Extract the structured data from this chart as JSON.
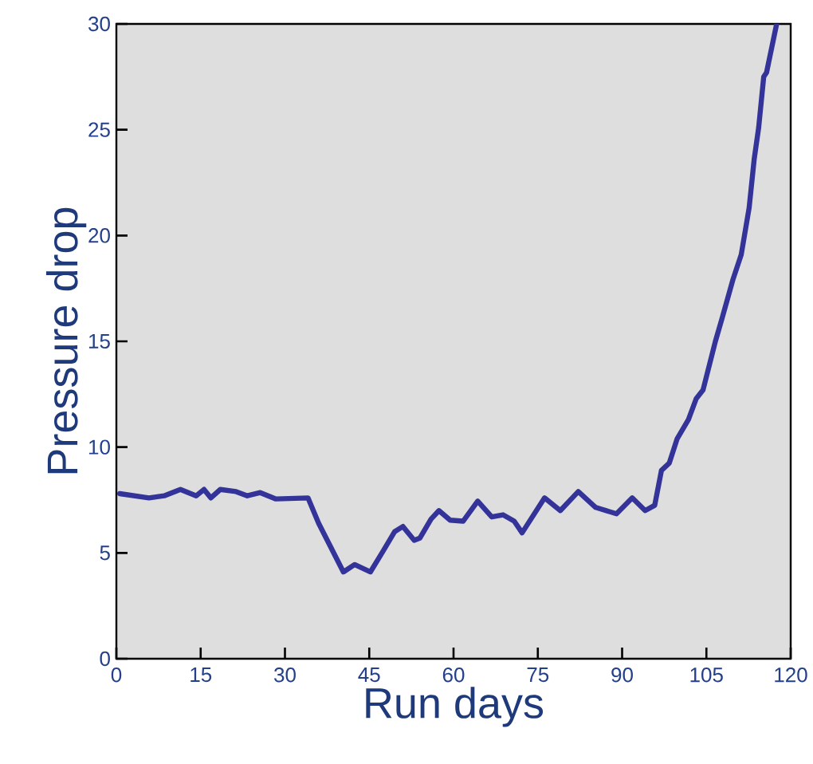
{
  "chart_data": {
    "type": "line",
    "xlabel": "Run days",
    "ylabel": "Pressure drop",
    "x": [
      0.6,
      5.8,
      8.5,
      11.4,
      14.2,
      15.6,
      16.8,
      18.5,
      21.3,
      23.3,
      25.6,
      28.4,
      34.1,
      36,
      40.4,
      42.4,
      45.2,
      47.5,
      49.5,
      51,
      53,
      54,
      56,
      57.4,
      59.4,
      61.7,
      64.3,
      66.8,
      68.8,
      70.8,
      72.2,
      76.2,
      79,
      82.2,
      85.3,
      89,
      91.8,
      94.1,
      95.8,
      97,
      98.4,
      99.8,
      101.8,
      103.2,
      104.4,
      106.6,
      107.8,
      109.7,
      111.2,
      112.6,
      113.5,
      114.3,
      115.2,
      115.7,
      117.5
    ],
    "series": [
      {
        "color": "#333399",
        "values": [
          7.8,
          7.6,
          7.7,
          8.0,
          7.7,
          8.0,
          7.6,
          8.0,
          7.9,
          7.7,
          7.85,
          7.55,
          7.6,
          6.4,
          4.1,
          4.45,
          4.1,
          5.1,
          6.0,
          6.25,
          5.6,
          5.7,
          6.6,
          7.0,
          6.55,
          6.5,
          7.45,
          6.7,
          6.8,
          6.5,
          5.95,
          7.6,
          7.0,
          7.9,
          7.15,
          6.85,
          7.6,
          7.0,
          7.25,
          8.9,
          9.25,
          10.4,
          11.3,
          12.3,
          12.7,
          15.0,
          16.1,
          17.9,
          19.1,
          21.3,
          23.6,
          25.1,
          27.5,
          27.7,
          30
        ]
      }
    ],
    "xlim": [
      0,
      120
    ],
    "ylim": [
      0,
      30
    ],
    "xticks": [
      0,
      15,
      30,
      45,
      60,
      75,
      90,
      105,
      120
    ],
    "yticks": [
      0,
      5,
      10,
      15,
      20,
      25,
      30
    ],
    "grid": false,
    "line_style": "solid"
  }
}
